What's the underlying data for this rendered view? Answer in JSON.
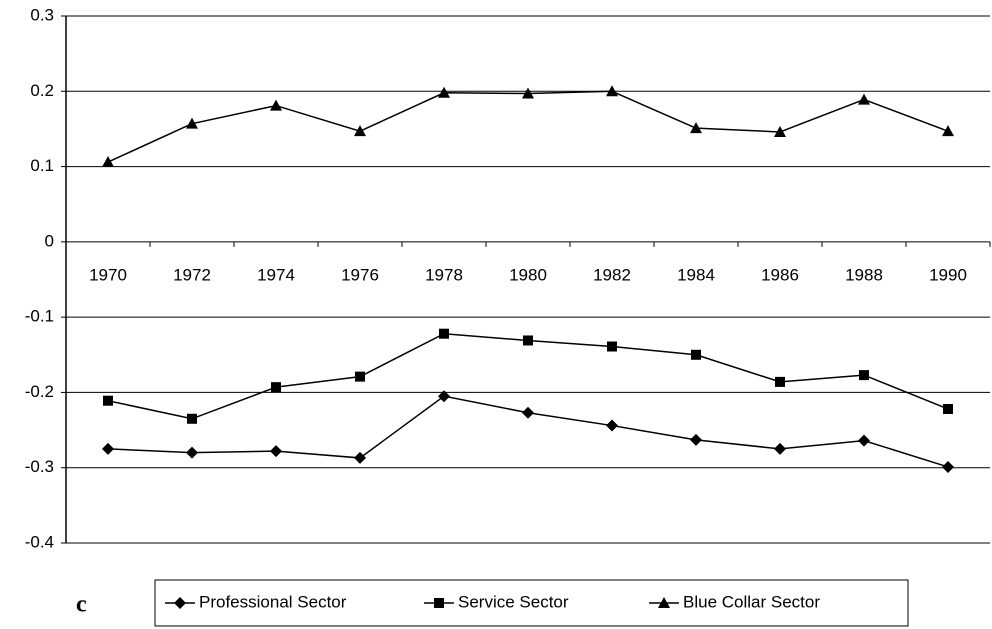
{
  "chart_data": {
    "type": "line",
    "categories": [
      "1970",
      "1972",
      "1974",
      "1976",
      "1978",
      "1980",
      "1982",
      "1984",
      "1986",
      "1988",
      "1990"
    ],
    "series": [
      {
        "name": "Professional Sector",
        "color": "#000000",
        "marker": "diamond",
        "values": [
          -0.275,
          -0.28,
          -0.278,
          -0.287,
          -0.205,
          -0.227,
          -0.244,
          -0.263,
          -0.275,
          -0.264,
          -0.299
        ]
      },
      {
        "name": "Service Sector",
        "color": "#000000",
        "marker": "square",
        "values": [
          -0.211,
          -0.235,
          -0.193,
          -0.179,
          -0.122,
          -0.131,
          -0.139,
          -0.15,
          -0.186,
          -0.177,
          -0.222
        ]
      },
      {
        "name": "Blue Collar Sector",
        "color": "#000000",
        "marker": "triangle",
        "values": [
          0.106,
          0.157,
          0.181,
          0.147,
          0.198,
          0.197,
          0.2,
          0.151,
          0.146,
          0.189,
          0.147
        ]
      }
    ],
    "ylim": [
      -0.4,
      0.3
    ],
    "yticks": [
      0.3,
      0.2,
      0.1,
      0,
      -0.1,
      -0.2,
      -0.3,
      -0.4
    ],
    "grid": true,
    "legend": "bottom",
    "annotation": "c"
  }
}
